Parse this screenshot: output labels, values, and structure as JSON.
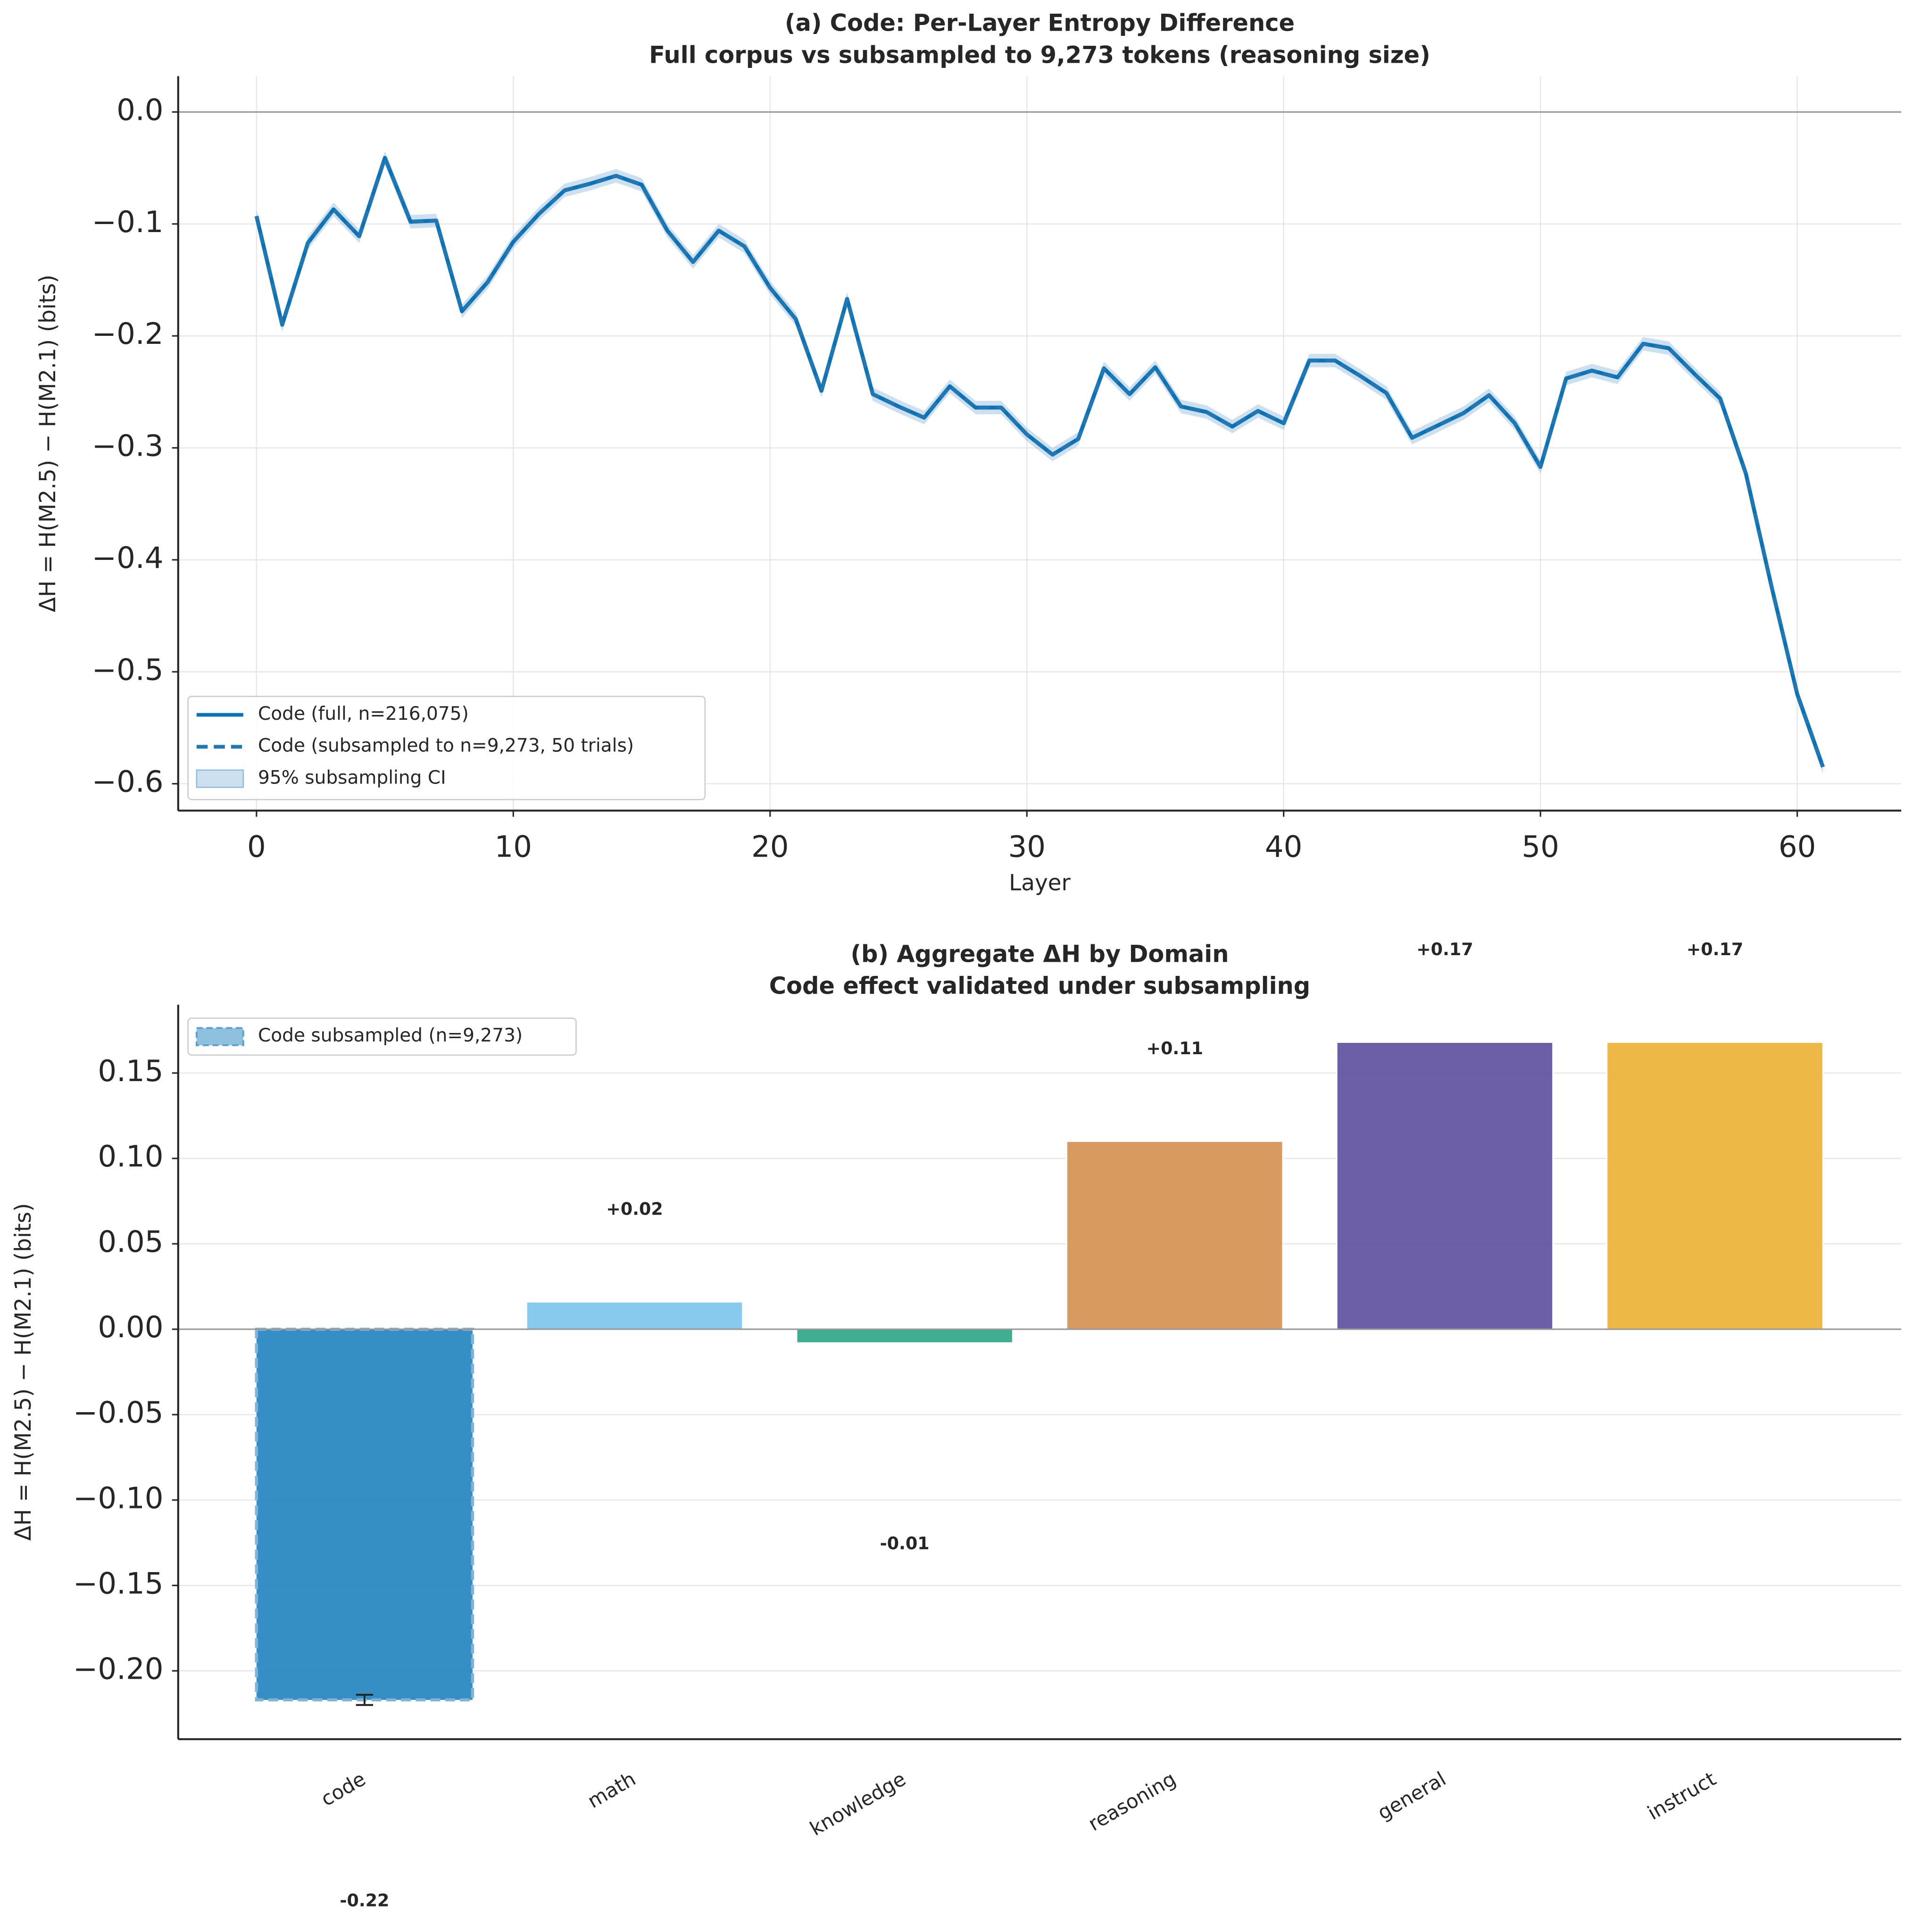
{
  "chart_data": [
    {
      "type": "line",
      "title": "(a) Code: Per-Layer Entropy Difference",
      "subtitle": "Full corpus vs subsampled to 9,273 tokens (reasoning size)",
      "xlabel": "Layer",
      "ylabel": "ΔH = H(M2.5) − H(M2.1) (bits)",
      "x": [
        0,
        1,
        2,
        3,
        4,
        5,
        6,
        7,
        8,
        9,
        10,
        11,
        12,
        13,
        14,
        15,
        16,
        17,
        18,
        19,
        20,
        21,
        22,
        23,
        24,
        25,
        26,
        27,
        28,
        29,
        30,
        31,
        32,
        33,
        34,
        35,
        36,
        37,
        38,
        39,
        40,
        41,
        42,
        43,
        44,
        45,
        46,
        47,
        48,
        49,
        50,
        51,
        52,
        53,
        54,
        55,
        56,
        57,
        58,
        59,
        60,
        61
      ],
      "xlim": [
        -3.05,
        64.05
      ],
      "xticks": [
        0,
        10,
        20,
        30,
        40,
        50,
        60
      ],
      "ylim": [
        -0.624,
        0.032
      ],
      "yticks": [
        {
          "value": -0.6,
          "label": "−0.6"
        },
        {
          "value": -0.5,
          "label": "−0.5"
        },
        {
          "value": -0.4,
          "label": "−0.4"
        },
        {
          "value": -0.3,
          "label": "−0.3"
        },
        {
          "value": -0.2,
          "label": "−0.2"
        },
        {
          "value": -0.1,
          "label": "−0.1"
        },
        {
          "value": 0,
          "label": "0.0"
        }
      ],
      "grid": true,
      "legend": "lower left",
      "series": [
        {
          "name": "Code (full, n=216,075)",
          "color": "#0b72b5",
          "style": "solid",
          "values": [
            -0.093,
            -0.19,
            -0.117,
            -0.087,
            -0.111,
            -0.041,
            -0.098,
            -0.097,
            -0.178,
            -0.152,
            -0.116,
            -0.091,
            -0.07,
            -0.064,
            -0.057,
            -0.065,
            -0.106,
            -0.134,
            -0.106,
            -0.12,
            -0.157,
            -0.185,
            -0.249,
            -0.167,
            -0.252,
            -0.263,
            -0.273,
            -0.245,
            -0.264,
            -0.264,
            -0.288,
            -0.306,
            -0.292,
            -0.229,
            -0.252,
            -0.228,
            -0.263,
            -0.268,
            -0.281,
            -0.267,
            -0.278,
            -0.222,
            -0.222,
            -0.236,
            -0.251,
            -0.291,
            -0.28,
            -0.269,
            -0.253,
            -0.278,
            -0.317,
            -0.238,
            -0.231,
            -0.237,
            -0.207,
            -0.211,
            -0.234,
            -0.256,
            -0.323,
            -0.424,
            -0.52,
            -0.585
          ]
        },
        {
          "name": "Code (subsampled to n=9,273, 50 trials)",
          "color": "#1f77b4",
          "style": "dashed",
          "values": [
            -0.093,
            -0.19,
            -0.117,
            -0.087,
            -0.111,
            -0.041,
            -0.098,
            -0.097,
            -0.178,
            -0.152,
            -0.116,
            -0.091,
            -0.07,
            -0.064,
            -0.057,
            -0.065,
            -0.106,
            -0.134,
            -0.106,
            -0.12,
            -0.157,
            -0.185,
            -0.249,
            -0.167,
            -0.252,
            -0.263,
            -0.273,
            -0.245,
            -0.264,
            -0.264,
            -0.288,
            -0.306,
            -0.292,
            -0.229,
            -0.252,
            -0.228,
            -0.263,
            -0.268,
            -0.281,
            -0.267,
            -0.278,
            -0.222,
            -0.222,
            -0.236,
            -0.251,
            -0.291,
            -0.28,
            -0.269,
            -0.253,
            -0.278,
            -0.317,
            -0.238,
            -0.231,
            -0.237,
            -0.207,
            -0.211,
            -0.234,
            -0.256,
            -0.323,
            -0.424,
            -0.52,
            -0.585
          ]
        }
      ],
      "band": {
        "name": "95% subsampling CI",
        "color": "#8fbbdc",
        "halfwidth": 0.006
      }
    },
    {
      "type": "bar",
      "title": "(b) Aggregate ΔH by Domain",
      "subtitle": "Code effect validated under subsampling",
      "ylabel": "ΔH = H(M2.5) − H(M2.1) (bits)",
      "categories": [
        "code",
        "math",
        "knowledge",
        "reasoning",
        "general",
        "instruct"
      ],
      "values": [
        -0.217,
        0.016,
        -0.008,
        0.11,
        0.168,
        0.168
      ],
      "value_labels": [
        "-0.22",
        "+0.02",
        "-0.01",
        "+0.11",
        "+0.17",
        "+0.17"
      ],
      "errors": [
        0.003,
        null,
        null,
        null,
        null,
        null
      ],
      "colors": [
        "#1f83bf",
        "#7bc3ec",
        "#2ca585",
        "#d58f4e",
        "#5c4e9f",
        "#ebb032"
      ],
      "legend_label": "Code subsampled (n=9,273)",
      "ylim": [
        -0.24,
        0.19
      ],
      "yticks": [
        {
          "value": -0.2,
          "label": "−0.20"
        },
        {
          "value": -0.15,
          "label": "−0.15"
        },
        {
          "value": -0.1,
          "label": "−0.10"
        },
        {
          "value": -0.05,
          "label": "−0.05"
        },
        {
          "value": 0,
          "label": "0.00"
        },
        {
          "value": 0.05,
          "label": "0.05"
        },
        {
          "value": 0.1,
          "label": "0.10"
        },
        {
          "value": 0.15,
          "label": "0.15"
        }
      ],
      "grid": true
    }
  ]
}
